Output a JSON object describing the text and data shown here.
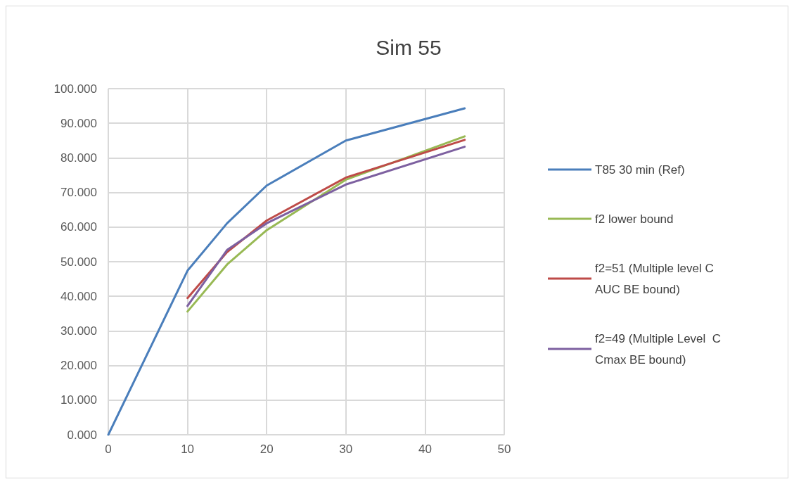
{
  "chart_data": {
    "type": "line",
    "title": "Sim 55",
    "x": [
      0,
      10,
      15,
      20,
      30,
      45
    ],
    "series": [
      {
        "name": "T85 30 min (Ref)",
        "color": "#4a7ebb",
        "values": [
          0,
          47.4,
          61.1,
          72.0,
          85.0,
          94.3
        ]
      },
      {
        "name": "f2 lower bound",
        "color": "#98b954",
        "values": [
          null,
          35.6,
          49.2,
          59.1,
          73.7,
          86.2
        ]
      },
      {
        "name": "f2=51 (Multiple level C AUC BE bound)",
        "color": "#be4b48",
        "values": [
          null,
          39.5,
          52.8,
          61.9,
          74.3,
          85.2
        ]
      },
      {
        "name": "f2=49 (Multiple Level  C Cmax BE bound)",
        "color": "#7d60a0",
        "values": [
          null,
          37.2,
          53.4,
          61.1,
          72.3,
          83.2
        ]
      }
    ],
    "xlim": [
      0,
      50
    ],
    "xticks": [
      0,
      10,
      20,
      30,
      40,
      50
    ],
    "ylim": [
      0,
      100
    ],
    "yticks": [
      {
        "value": 0,
        "label": "0.000"
      },
      {
        "value": 10,
        "label": "10.000"
      },
      {
        "value": 20,
        "label": "20.000"
      },
      {
        "value": 30,
        "label": "30.000"
      },
      {
        "value": 40,
        "label": "40.000"
      },
      {
        "value": 50,
        "label": "50.000"
      },
      {
        "value": 60,
        "label": "60.000"
      },
      {
        "value": 70,
        "label": "70.000"
      },
      {
        "value": 80,
        "label": "80.000"
      },
      {
        "value": 90,
        "label": "90.000"
      },
      {
        "value": 100,
        "label": "100.000"
      }
    ],
    "grid": true,
    "legend": "right",
    "marker": "none",
    "line_style": "solid"
  }
}
